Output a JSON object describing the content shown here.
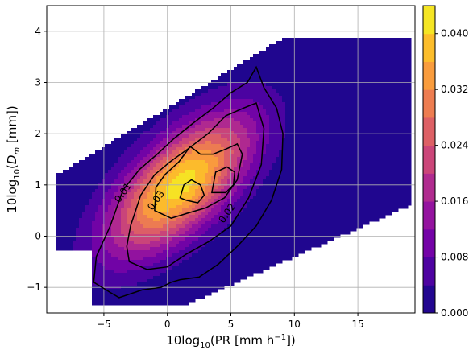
{
  "chart_data": {
    "type": "heatmap",
    "title": "",
    "x_axis": {
      "label_prefix": "10log",
      "label_sub": "10",
      "label_main": "(PR [mm h",
      "label_sup": "−1",
      "label_suffix": "])",
      "range": [
        -9.5,
        19.5
      ],
      "ticks": [
        -5,
        0,
        5,
        10,
        15
      ],
      "tick_labels": [
        "−5",
        "0",
        "5",
        "10",
        "15"
      ]
    },
    "y_axis": {
      "label_prefix": "10log",
      "label_sub": "10",
      "label_open": "(",
      "label_var": "D",
      "label_var_sub": "m",
      "label_suffix": " [mm])",
      "range": [
        -1.5,
        4.5
      ],
      "ticks": [
        -1,
        0,
        1,
        2,
        3,
        4
      ],
      "tick_labels": [
        "−1",
        "0",
        "1",
        "2",
        "3",
        "4"
      ]
    },
    "grid": true,
    "colormap": "plasma",
    "colorbar": {
      "range": [
        0.0,
        0.044
      ],
      "ticks": [
        0.0,
        0.008,
        0.016,
        0.024,
        0.032,
        0.04
      ],
      "tick_labels": [
        "0.000",
        "0.008",
        "0.016",
        "0.024",
        "0.032",
        "0.040"
      ],
      "placement": "right"
    },
    "density_peak": {
      "x": 1.0,
      "y": 1.0,
      "value": 0.042
    },
    "contours": [
      {
        "level": 0.01,
        "label": "0.01",
        "label_at": [
          -3.5,
          0.85
        ],
        "path": [
          [
            -5.8,
            -0.9
          ],
          [
            -4.5,
            -1.1
          ],
          [
            -3.8,
            -1.2
          ],
          [
            -2,
            -1.05
          ],
          [
            -0.5,
            -1.0
          ],
          [
            0.3,
            -0.9
          ],
          [
            1,
            -0.85
          ],
          [
            2.5,
            -0.8
          ],
          [
            4,
            -0.55
          ],
          [
            5.5,
            -0.2
          ],
          [
            7,
            0.2
          ],
          [
            8.2,
            0.7
          ],
          [
            9,
            1.3
          ],
          [
            9.1,
            2
          ],
          [
            8.6,
            2.5
          ],
          [
            7.6,
            2.9
          ],
          [
            7,
            3.3
          ],
          [
            6.3,
            3.0
          ],
          [
            5,
            2.8
          ],
          [
            3.6,
            2.5
          ],
          [
            2,
            2.2
          ],
          [
            0.5,
            1.9
          ],
          [
            -0.8,
            1.6
          ],
          [
            -2.2,
            1.3
          ],
          [
            -3.5,
            0.9
          ],
          [
            -4.5,
            0.2
          ],
          [
            -5.6,
            -0.4
          ],
          [
            -5.8,
            -0.9
          ]
        ]
      },
      {
        "level": 0.03,
        "label": "0.03",
        "label_at": [
          -0.9,
          0.7
        ],
        "path": [
          [
            -3,
            -0.5
          ],
          [
            -1.6,
            -0.65
          ],
          [
            0,
            -0.6
          ],
          [
            1.5,
            -0.35
          ],
          [
            3.3,
            -0.1
          ],
          [
            5,
            0.2
          ],
          [
            6.4,
            0.75
          ],
          [
            7.4,
            1.4
          ],
          [
            7.6,
            2.1
          ],
          [
            7.0,
            2.6
          ],
          [
            6.0,
            2.5
          ],
          [
            4.6,
            2.35
          ],
          [
            3.2,
            2.0
          ],
          [
            1.6,
            1.7
          ],
          [
            0.2,
            1.45
          ],
          [
            -1,
            1.2
          ],
          [
            -2.1,
            0.8
          ],
          [
            -2.9,
            0.2
          ],
          [
            -3.2,
            -0.2
          ],
          [
            -3,
            -0.5
          ]
        ]
      },
      {
        "level": 0.02,
        "label": "0.02",
        "label_at": [
          4.7,
          0.45
        ],
        "path": [
          [
            -1,
            0.5
          ],
          [
            0.3,
            0.35
          ],
          [
            1.6,
            0.45
          ],
          [
            3,
            0.55
          ],
          [
            4.5,
            0.75
          ],
          [
            5.5,
            1.1
          ],
          [
            5.9,
            1.6
          ],
          [
            5.5,
            1.8
          ],
          [
            4.6,
            1.7
          ],
          [
            3.6,
            1.6
          ],
          [
            2.6,
            1.6
          ],
          [
            1.8,
            1.75
          ],
          [
            0.9,
            1.45
          ],
          [
            -0.2,
            1.2
          ],
          [
            -0.9,
            0.95
          ],
          [
            -1,
            0.5
          ]
        ]
      },
      {
        "level": 0.04,
        "label": "",
        "label_at": null,
        "path": [
          [
            1.0,
            0.75
          ],
          [
            1.5,
            0.7
          ],
          [
            2.4,
            0.65
          ],
          [
            2.9,
            0.8
          ],
          [
            2.6,
            1.0
          ],
          [
            1.9,
            1.1
          ],
          [
            1.3,
            1.0
          ],
          [
            1.0,
            0.75
          ]
        ]
      },
      {
        "level": 0.04,
        "label": "",
        "label_at": null,
        "path": [
          [
            3.5,
            0.85
          ],
          [
            4.6,
            0.85
          ],
          [
            5.2,
            1.0
          ],
          [
            5.3,
            1.25
          ],
          [
            4.7,
            1.35
          ],
          [
            3.8,
            1.25
          ],
          [
            3.5,
            0.85
          ]
        ]
      }
    ]
  }
}
